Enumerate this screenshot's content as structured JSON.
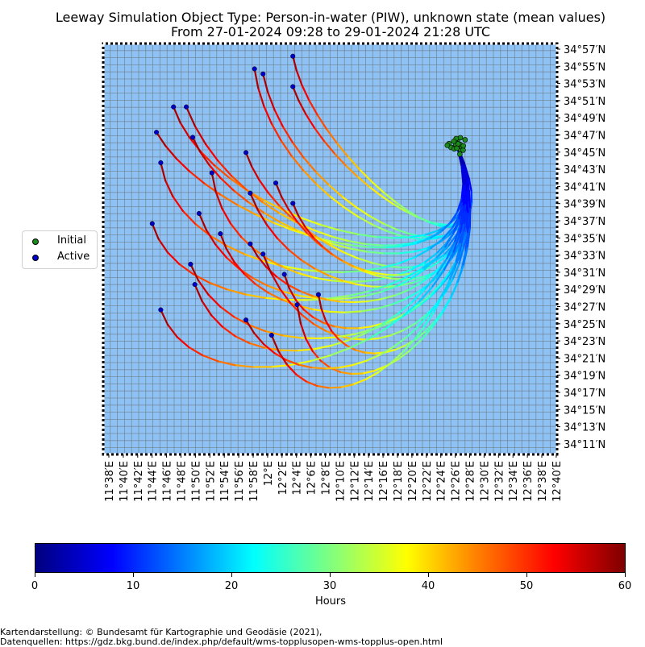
{
  "title": {
    "line1": "Leeway Simulation Object Type: Person-in-water (PIW), unknown state (mean values)",
    "line2": "From 27-01-2024 09:28 to 29-01-2024 21:28 UTC"
  },
  "colors": {
    "sea": "#8fc2f4",
    "grid": "#6e7b85",
    "initial_marker": "#1b8a1b",
    "active_marker": "#0000c8"
  },
  "latitude_labels": [
    "34°57′N",
    "34°55′N",
    "34°53′N",
    "34°51′N",
    "34°49′N",
    "34°47′N",
    "34°45′N",
    "34°43′N",
    "34°41′N",
    "34°39′N",
    "34°37′N",
    "34°35′N",
    "34°33′N",
    "34°31′N",
    "34°29′N",
    "34°27′N",
    "34°25′N",
    "34°23′N",
    "34°21′N",
    "34°19′N",
    "34°17′N",
    "34°15′N",
    "34°13′N",
    "34°11′N"
  ],
  "longitude_labels": [
    "11°38′E",
    "11°40′E",
    "11°42′E",
    "11°44′E",
    "11°46′E",
    "11°48′E",
    "11°50′E",
    "11°52′E",
    "11°54′E",
    "11°56′E",
    "11°58′E",
    "12°E",
    "12°2′E",
    "12°4′E",
    "12°6′E",
    "12°8′E",
    "12°10′E",
    "12°12′E",
    "12°14′E",
    "12°16′E",
    "12°18′E",
    "12°20′E",
    "12°22′E",
    "12°24′E",
    "12°26′E",
    "12°28′E",
    "12°30′E",
    "12°32′E",
    "12°34′E",
    "12°36′E",
    "12°38′E",
    "12°40′E"
  ],
  "legend": {
    "initial": "Initial",
    "active": "Active"
  },
  "colorbar": {
    "label": "Hours",
    "ticks": [
      "0",
      "10",
      "20",
      "30",
      "40",
      "50",
      "60"
    ],
    "range": [
      0,
      60
    ],
    "colormap": "jet"
  },
  "map_data": {
    "start_location": {
      "lat_deg": 34.775,
      "lon_deg": 12.455
    },
    "active_points": [
      {
        "lat": 34.95,
        "lon": 12.07
      },
      {
        "lat": 34.925,
        "lon": 11.98
      },
      {
        "lat": 34.915,
        "lon": 12.0
      },
      {
        "lat": 34.89,
        "lon": 12.07
      },
      {
        "lat": 34.85,
        "lon": 11.79
      },
      {
        "lat": 34.85,
        "lon": 11.82
      },
      {
        "lat": 34.8,
        "lon": 11.75
      },
      {
        "lat": 34.79,
        "lon": 11.835
      },
      {
        "lat": 34.76,
        "lon": 11.96
      },
      {
        "lat": 34.74,
        "lon": 11.76
      },
      {
        "lat": 34.72,
        "lon": 11.88
      },
      {
        "lat": 34.7,
        "lon": 12.03
      },
      {
        "lat": 34.68,
        "lon": 11.97
      },
      {
        "lat": 34.66,
        "lon": 12.07
      },
      {
        "lat": 34.64,
        "lon": 11.85
      },
      {
        "lat": 34.62,
        "lon": 11.74
      },
      {
        "lat": 34.6,
        "lon": 11.9
      },
      {
        "lat": 34.58,
        "lon": 11.97
      },
      {
        "lat": 34.56,
        "lon": 12.0
      },
      {
        "lat": 34.54,
        "lon": 11.83
      },
      {
        "lat": 34.52,
        "lon": 12.05
      },
      {
        "lat": 34.5,
        "lon": 11.84
      },
      {
        "lat": 34.48,
        "lon": 12.13
      },
      {
        "lat": 34.46,
        "lon": 12.08
      },
      {
        "lat": 34.45,
        "lon": 11.76
      },
      {
        "lat": 34.43,
        "lon": 11.96
      },
      {
        "lat": 34.4,
        "lon": 12.02
      }
    ]
  },
  "credits": {
    "line1": "Kartendarstellung: © Bundesamt für Kartographie und Geodäsie (2021),",
    "line2": "Datenquellen: https://gdz.bkg.bund.de/index.php/default/wms-topplusopen-wms-topplus-open.html"
  }
}
